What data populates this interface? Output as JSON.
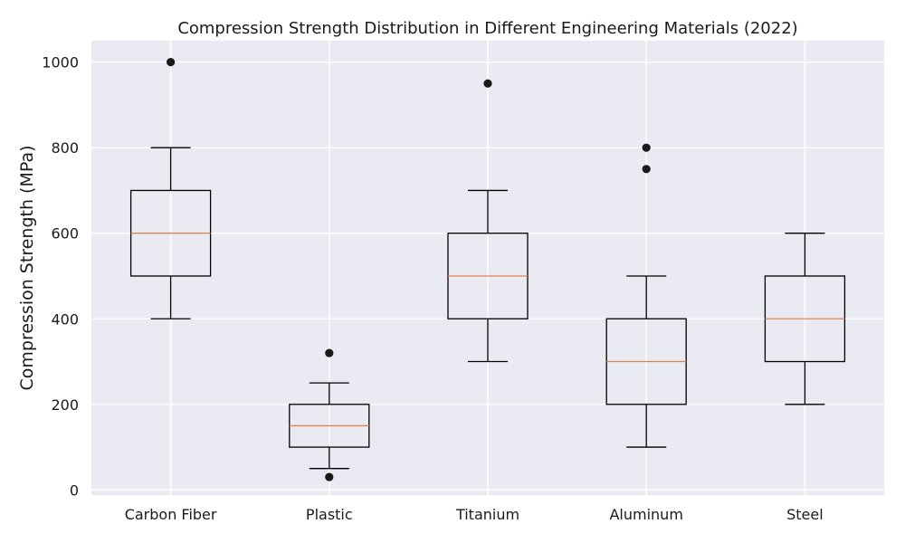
{
  "chart_data": {
    "type": "box",
    "title": "Compression Strength Distribution in Different Engineering Materials (2022)",
    "xlabel": "",
    "ylabel": "Compression Strength (MPa)",
    "ylim": [
      -12,
      1050
    ],
    "yticks": [
      0,
      200,
      400,
      600,
      800,
      1000
    ],
    "grid": true,
    "categories": [
      "Carbon Fiber",
      "Plastic",
      "Titanium",
      "Aluminum",
      "Steel"
    ],
    "boxes": [
      {
        "name": "Carbon Fiber",
        "whisker_low": 400,
        "q1": 500,
        "median": 600,
        "q3": 700,
        "whisker_high": 800,
        "outliers": [
          1000
        ]
      },
      {
        "name": "Plastic",
        "whisker_low": 50,
        "q1": 100,
        "median": 150,
        "q3": 200,
        "whisker_high": 250,
        "outliers": [
          320,
          30
        ]
      },
      {
        "name": "Titanium",
        "whisker_low": 300,
        "q1": 400,
        "median": 500,
        "q3": 600,
        "whisker_high": 700,
        "outliers": [
          950
        ]
      },
      {
        "name": "Aluminum",
        "whisker_low": 100,
        "q1": 200,
        "median": 300,
        "q3": 400,
        "whisker_high": 500,
        "outliers": [
          800,
          750
        ]
      },
      {
        "name": "Steel",
        "whisker_low": 200,
        "q1": 300,
        "median": 400,
        "q3": 500,
        "whisker_high": 600,
        "outliers": []
      }
    ],
    "colors": {
      "background": "#eaeaf2",
      "grid": "#ffffff",
      "box": "#000000",
      "median": "#dd8452",
      "outlier": "#1a1a1a"
    }
  }
}
